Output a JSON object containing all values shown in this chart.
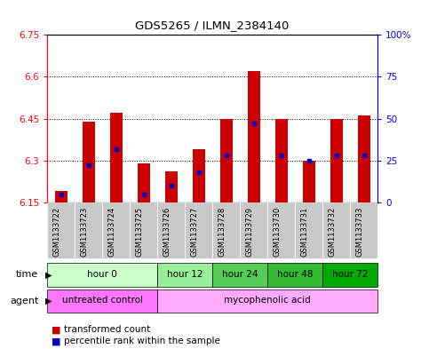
{
  "title": "GDS5265 / ILMN_2384140",
  "samples": [
    "GSM1133722",
    "GSM1133723",
    "GSM1133724",
    "GSM1133725",
    "GSM1133726",
    "GSM1133727",
    "GSM1133728",
    "GSM1133729",
    "GSM1133730",
    "GSM1133731",
    "GSM1133732",
    "GSM1133733"
  ],
  "transformed_count": [
    6.19,
    6.44,
    6.47,
    6.29,
    6.26,
    6.34,
    6.45,
    6.62,
    6.45,
    6.3,
    6.45,
    6.46
  ],
  "percentile": [
    5,
    22,
    32,
    5,
    10,
    18,
    28,
    47,
    28,
    25,
    28,
    28
  ],
  "ymin": 6.15,
  "ymax": 6.75,
  "yticks": [
    6.15,
    6.3,
    6.45,
    6.6,
    6.75
  ],
  "ytick_labels": [
    "6.15",
    "6.3",
    "6.45",
    "6.6",
    "6.75"
  ],
  "right_yticks": [
    0,
    25,
    50,
    75,
    100
  ],
  "right_ytick_labels": [
    "0",
    "25",
    "50",
    "75",
    "100%"
  ],
  "bar_color": "#cc0000",
  "percentile_color": "#0000cc",
  "time_groups": [
    {
      "label": "hour 0",
      "start": 0,
      "end": 3,
      "bg": "#ccffcc"
    },
    {
      "label": "hour 12",
      "start": 4,
      "end": 5,
      "bg": "#99ee99"
    },
    {
      "label": "hour 24",
      "start": 6,
      "end": 7,
      "bg": "#55cc55"
    },
    {
      "label": "hour 48",
      "start": 8,
      "end": 9,
      "bg": "#33bb33"
    },
    {
      "label": "hour 72",
      "start": 10,
      "end": 11,
      "bg": "#00aa00"
    }
  ],
  "agent_groups": [
    {
      "label": "untreated control",
      "start": 0,
      "end": 3,
      "bg": "#ff77ff"
    },
    {
      "label": "mycophenolic acid",
      "start": 4,
      "end": 11,
      "bg": "#ffaaff"
    }
  ],
  "legend_red": "transformed count",
  "legend_blue": "percentile rank within the sample",
  "sample_bg": "#c8c8c8",
  "bar_width": 0.45
}
